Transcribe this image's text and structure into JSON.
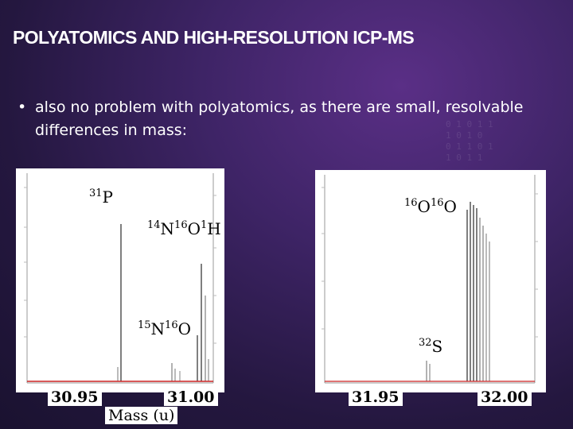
{
  "slide": {
    "title": "POLYATOMICS AND HIGH-RESOLUTION ICP-MS",
    "bullet_symbol": "•",
    "bullet_text": "also no problem with polyatomics, as there are small, resolvable differences in mass:"
  },
  "left_spectrum": {
    "peak_labels": [
      {
        "mass": "31",
        "element": "P"
      },
      {
        "mass": "14",
        "element": "N",
        "mass2": "16",
        "element2": "O",
        "mass3": "1",
        "element3": "H"
      },
      {
        "mass": "15",
        "element": "N",
        "mass2": "16",
        "element2": "O"
      }
    ],
    "x_start": "30.95",
    "x_end": "31.00",
    "x_axis_title": "Mass (u)"
  },
  "right_spectrum": {
    "peak_labels": [
      {
        "mass": "16",
        "element": "O",
        "mass2": "16",
        "element2": "O"
      },
      {
        "mass": "32",
        "element": "S"
      }
    ],
    "x_start": "31.95",
    "x_end": "32.00"
  },
  "colors": {
    "background": "#3e2466",
    "panel": "#ffffff",
    "peak_lines": "#555555",
    "baseline": "#cc2222"
  }
}
